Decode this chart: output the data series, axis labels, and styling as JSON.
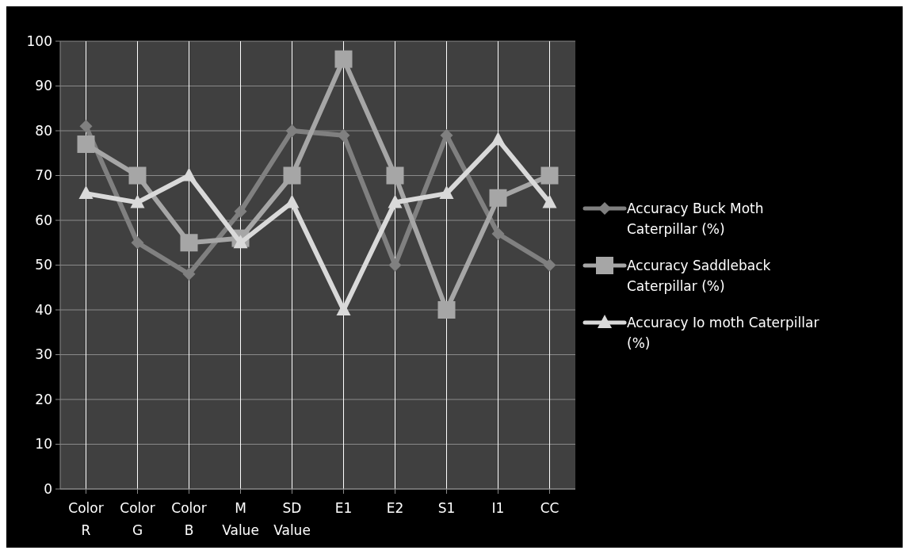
{
  "chart_data": {
    "type": "line",
    "categories": [
      "Color R",
      "Color G",
      "Color B",
      "M Value",
      "SD Value",
      "E1",
      "E2",
      "S1",
      "I1",
      "CC"
    ],
    "series": [
      {
        "name": "Accuracy Buck Moth Caterpillar  (%)",
        "color": "#808080",
        "marker": "diamond",
        "values": [
          81,
          55,
          48,
          62,
          80,
          79,
          50,
          79,
          57,
          50
        ]
      },
      {
        "name": "Accuracy Saddleback Caterpillar  (%)",
        "color": "#a6a6a6",
        "marker": "square",
        "values": [
          77,
          70,
          55,
          56,
          70,
          96,
          70,
          40,
          65,
          70
        ]
      },
      {
        "name": "Accuracy Io moth Caterpillar (%)",
        "color": "#d9d9d9",
        "marker": "triangle",
        "values": [
          66,
          64,
          70,
          55,
          64,
          40,
          64,
          66,
          78,
          64
        ]
      }
    ],
    "ylim": [
      0,
      100
    ],
    "yticks": [
      0,
      10,
      20,
      30,
      40,
      50,
      60,
      70,
      80,
      90,
      100
    ],
    "grid": true,
    "legend": "right"
  }
}
